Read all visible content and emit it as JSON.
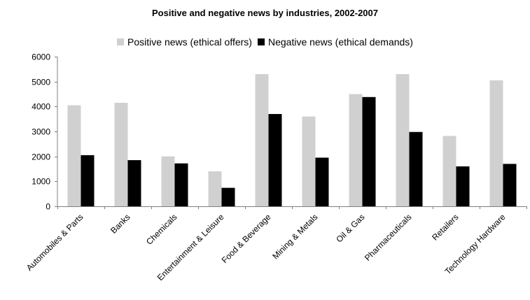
{
  "chart_data": {
    "type": "bar",
    "title": "Positive and negative news by industries, 2002-2007",
    "categories": [
      "Automobiles & Parts",
      "Banks",
      "Chemicals",
      "Entertainment & Leisure",
      "Food & Beverage",
      "Mining & Metals",
      "Oil & Gas",
      "Pharmaceuticals",
      "Retailers",
      "Technology Hardware"
    ],
    "series": [
      {
        "name": "Positive news (ethical offers)",
        "color": "#d0d0d0",
        "values": [
          4050,
          4150,
          2000,
          1400,
          5300,
          3600,
          4500,
          5300,
          2820,
          5050
        ]
      },
      {
        "name": "Negative news (ethical demands)",
        "color": "#000000",
        "values": [
          2050,
          1850,
          1720,
          740,
          3700,
          1950,
          4380,
          2980,
          1600,
          1700
        ]
      }
    ],
    "ylim": [
      0,
      6000
    ],
    "yticks": [
      0,
      1000,
      2000,
      3000,
      4000,
      5000,
      6000
    ],
    "legend": "top",
    "grid": false
  }
}
